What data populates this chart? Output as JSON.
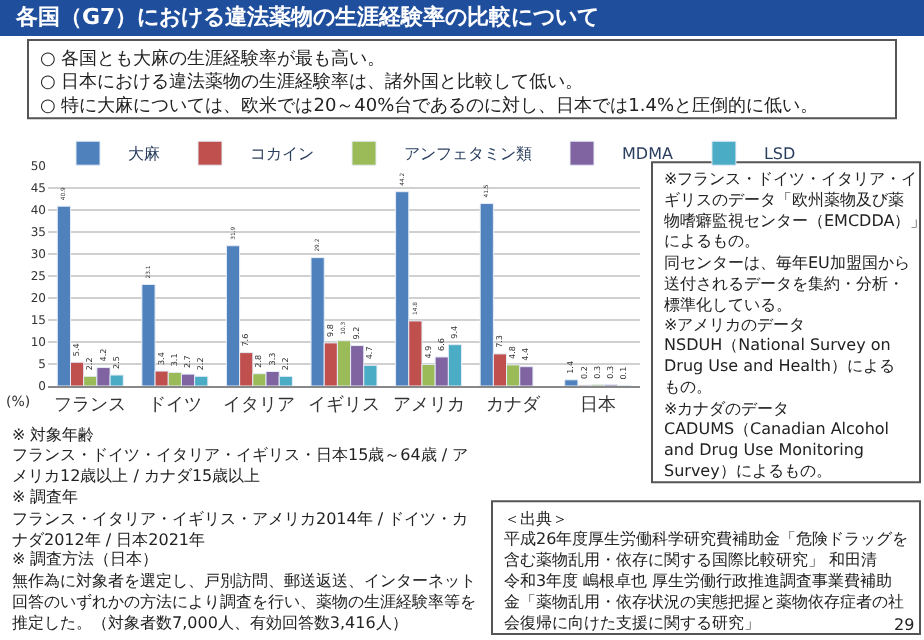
{
  "chart_data": {
    "type": "bar",
    "title": "各国（G7）における違法薬物の生涯経験率の比較について",
    "subtitle": "○ 各国とも大麻の生涯経験率が最も高い。\n○ 日本における違法薬物の生涯経験率は、諸外国と比較して低い。\n○ 特に大麻については、欧米では20～40%台であるのに対し、日本では1.4%と圧倒的に低い。",
    "ylabel": "(%)",
    "categories": [
      "フランス",
      "ドイツ",
      "イタリア",
      "イギリス",
      "アメリカ",
      "カナダ",
      "日本"
    ],
    "series": [
      {
        "name": "大麻",
        "color": "#4f81bd",
        "values": [
          40.9,
          23.1,
          31.9,
          29.2,
          44.2,
          41.5,
          1.4
        ]
      },
      {
        "name": "コカイン",
        "color": "#c0504d",
        "values": [
          5.4,
          3.4,
          7.6,
          9.8,
          14.8,
          7.3,
          0.2
        ]
      },
      {
        "name": "アンフェタミン類",
        "color": "#9bbb59",
        "values": [
          2.2,
          3.1,
          2.8,
          10.3,
          4.9,
          4.8,
          0.3
        ]
      },
      {
        "name": "MDMA",
        "color": "#8064a2",
        "values": [
          4.2,
          2.7,
          3.3,
          9.2,
          6.6,
          4.4,
          0.3
        ]
      },
      {
        "name": "LSD",
        "color": "#4bacc6",
        "values": [
          2.5,
          2.2,
          2.2,
          4.7,
          9.4,
          null,
          0.1
        ]
      }
    ],
    "ylim": [
      0,
      50
    ],
    "yticks": [
      0,
      5,
      10,
      15,
      20,
      25,
      30,
      35,
      40,
      45,
      50
    ],
    "grid": "y",
    "legend": "top",
    "data_labels": true,
    "annotations": [
      "※ 対象年齢",
      "フランス・ドイツ・イタリア・イギリス・日本15歳～64歳 / アメリカ12歳以上 / カナダ15歳以上",
      "※ 調査年",
      "フランス・イタリア・イギリス・アメリカ2014年 / ドイツ・カナダ2012年 / 日本2021年",
      "※ 調査方法（日本）",
      "無作為に対象者を選定し、戸別訪問、郵送返送、インターネット回答のいずれかの方法により調査を行い、薬物の生涯経験率等を推定した。（対象者数7,000人、有効回答数3,416人）",
      "＜出典＞",
      "平成26年度厚生労働科学研究費補助金「危険ドラッグを含む薬物乱用・依存に関する国際比較研究」 和田清",
      "令和3年度 嶋根卓也 厚生労働行政推進調査事業費補助金「薬物乱用・依存状況の実態把握と薬物依存症者の社会復帰に向けた支援に関する研究」",
      "※フランス・ドイツ・イタリア・イギリスのデータ「欧州薬物及び薬物嗜癖監視センター（EMCDDA）」によるもの。",
      "同センターは、毎年EU加盟国から送付されるデータを集約・分析・標準化している。",
      "※アメリカのデータ",
      "NSDUH（National Survey on Drug Use and Health）によるもの。",
      "※カナダのデータ",
      "CADUMS（Canadian Alcohol and Drug Use Monitoring Survey）によるもの。",
      "29"
    ]
  }
}
